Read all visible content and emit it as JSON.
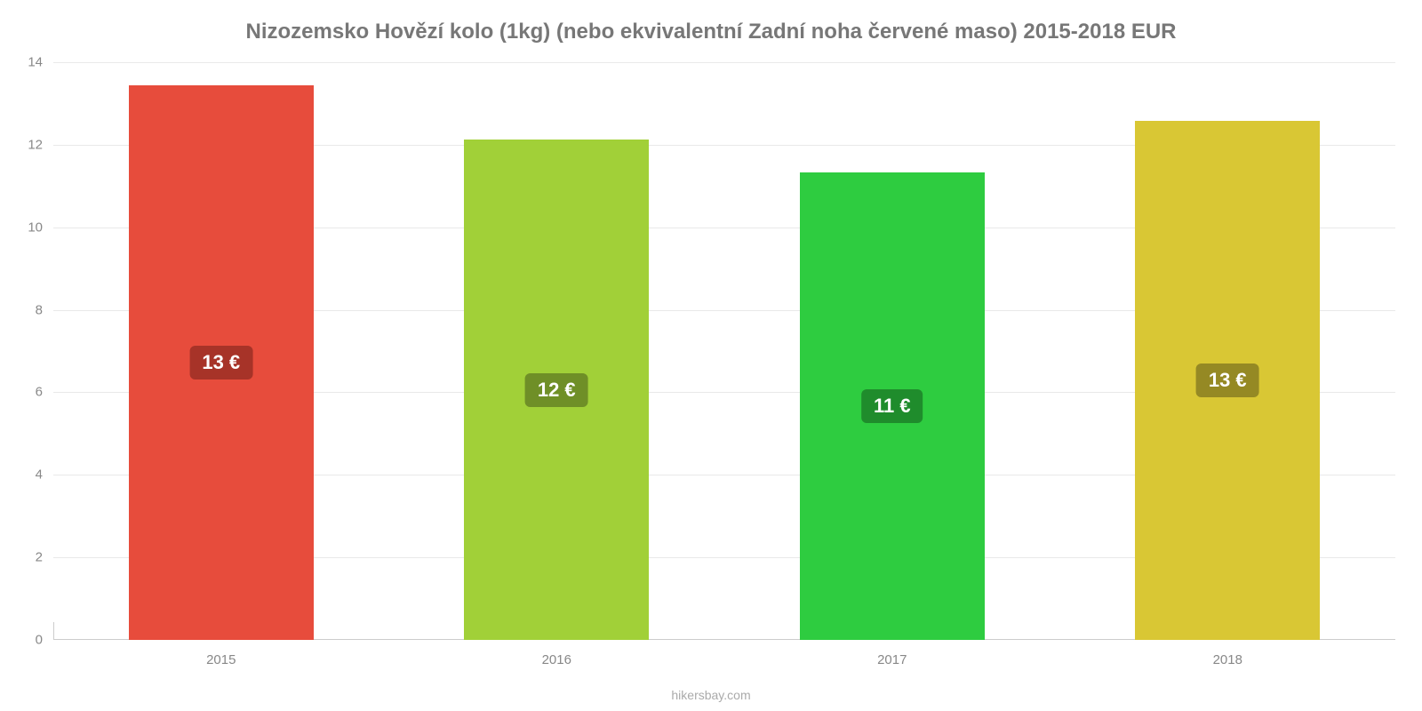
{
  "chart": {
    "type": "bar",
    "title": "Nizozemsko Hovězí kolo (1kg) (nebo ekvivalentní Zadní noha červené maso) 2015-2018 EUR",
    "title_fontsize": 24,
    "title_color": "#777777",
    "background_color": "#ffffff",
    "credit": "hikersbay.com",
    "credit_color": "#aaaaaa",
    "credit_fontsize": 14,
    "axis": {
      "ylim": [
        0,
        14
      ],
      "yticks": [
        0,
        2,
        4,
        6,
        8,
        10,
        12,
        14
      ],
      "ytick_color": "#888888",
      "ytick_fontsize": 15,
      "xtick_color": "#888888",
      "xtick_fontsize": 15,
      "grid_color": "#e9e9e9",
      "axis_line_color": "#cccccc"
    },
    "bars": {
      "categories": [
        "2015",
        "2016",
        "2017",
        "2018"
      ],
      "values": [
        13.45,
        12.12,
        11.32,
        12.58
      ],
      "value_labels": [
        "13 €",
        "12 €",
        "11 €",
        "13 €"
      ],
      "bar_colors": [
        "#e74c3c",
        "#a1d038",
        "#2ecc40",
        "#d9c734"
      ],
      "label_bg_colors": [
        "#a73328",
        "#6f8f27",
        "#1f8c2c",
        "#958924"
      ],
      "label_fontsize": 22,
      "label_text_color": "#ffffff",
      "bar_width_fraction": 0.55,
      "label_vertical_center_fraction": 0.5
    }
  }
}
